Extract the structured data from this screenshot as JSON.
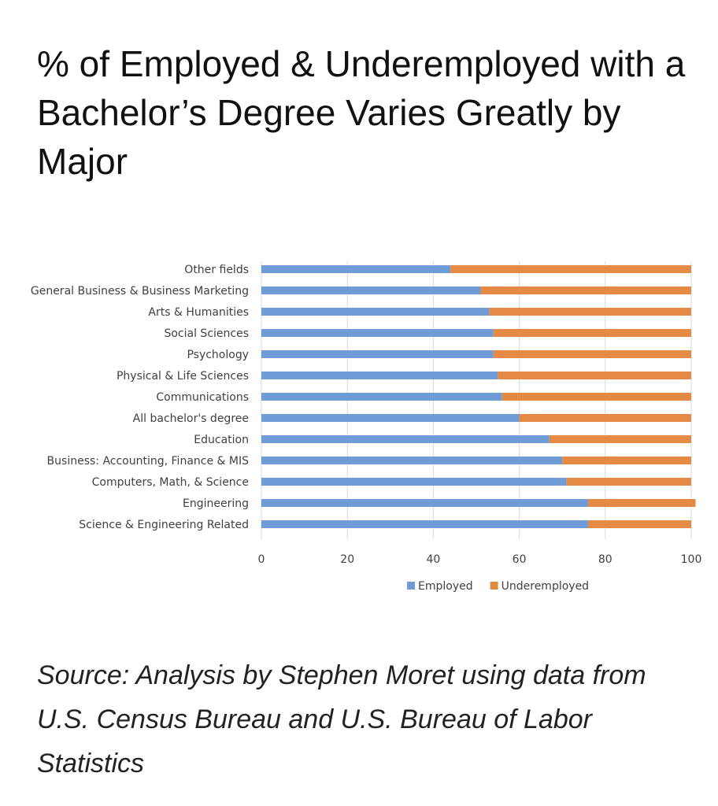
{
  "title": "% of Employed & Underemployed with a Bachelor’s Degree Varies Greatly by Major",
  "source": "Source: Analysis by Stephen Moret using data from U.S. Census Bureau and U.S. Bureau of Labor Statistics",
  "colors": {
    "employed": "#6f9bd6",
    "underemployed": "#e48a45",
    "grid": "#d9d9d9",
    "text": "#404040"
  },
  "chart_data": {
    "type": "bar",
    "orientation": "horizontal",
    "stacked": true,
    "categories": [
      "Other fields",
      "General Business & Business Marketing",
      "Arts & Humanities",
      "Social Sciences",
      "Psychology",
      "Physical & Life Sciences",
      "Communications",
      "All bachelor's degree",
      "Education",
      "Business: Accounting, Finance & MIS",
      "Computers, Math, & Science",
      "Engineering",
      "Science & Engineering Related"
    ],
    "series": [
      {
        "name": "Employed",
        "values": [
          44,
          51,
          53,
          54,
          54,
          55,
          56,
          60,
          67,
          70,
          71,
          76,
          76
        ]
      },
      {
        "name": "Underemployed",
        "values": [
          56,
          49,
          47,
          46,
          46,
          45,
          44,
          40,
          33,
          30,
          29,
          25,
          24
        ]
      }
    ],
    "xlim": [
      0,
      100
    ],
    "xticks": [
      "0",
      "20",
      "40",
      "60",
      "80",
      "100"
    ],
    "grid": "vertical",
    "legend": "bottom"
  }
}
